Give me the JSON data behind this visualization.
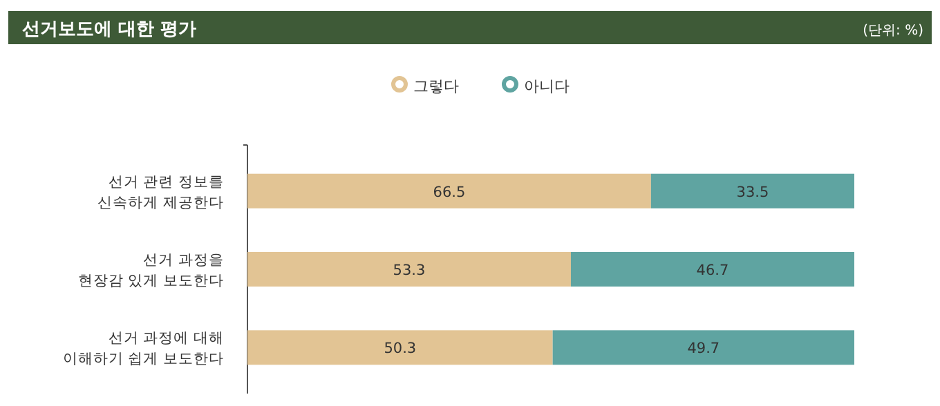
{
  "chart_data": {
    "type": "bar",
    "orientation": "horizontal",
    "stacked": true,
    "title": "선거보도에 대한 평가",
    "annotations": [
      "(단위: %)"
    ],
    "categories": [
      "선거 관련 정보를\n신속하게 제공한다",
      "선거 과정을\n현장감 있게 보도한다",
      "선거 과정에 대해\n이해하기 쉽게 보도한다"
    ],
    "series": [
      {
        "name": "그렇다",
        "color": "#e2c494",
        "values": [
          66.5,
          53.3,
          50.3
        ]
      },
      {
        "name": "아니다",
        "color": "#5fa4a1",
        "values": [
          33.5,
          46.7,
          49.7
        ]
      }
    ],
    "data_labels": true,
    "legend": "top"
  }
}
